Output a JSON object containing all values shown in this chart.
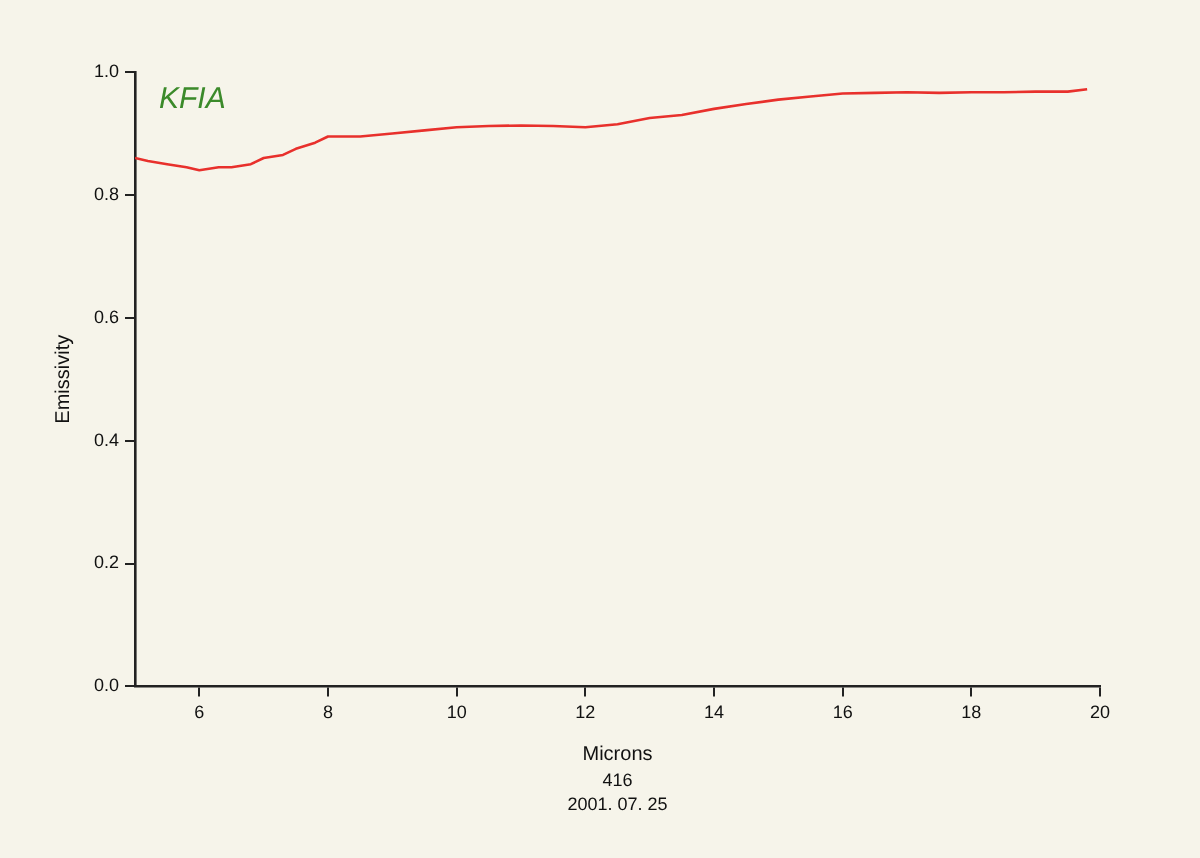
{
  "chart_data": {
    "type": "line",
    "xlabel": "Microns",
    "ylabel": "Emissivity",
    "annotations": [
      "KFIA",
      "416",
      "2001. 07. 25"
    ],
    "x": [
      5,
      5.2,
      5.5,
      5.8,
      6,
      6.3,
      6.5,
      6.8,
      7,
      7.3,
      7.5,
      7.8,
      8,
      8.5,
      9,
      9.5,
      10,
      10.5,
      11,
      11.5,
      12,
      12.5,
      13,
      13.5,
      14,
      14.5,
      15,
      15.5,
      16,
      16.5,
      17,
      17.5,
      18,
      18.5,
      19,
      19.5,
      19.8
    ],
    "series": [
      {
        "color": "#e8302c",
        "values": [
          0.86,
          0.855,
          0.85,
          0.845,
          0.84,
          0.845,
          0.845,
          0.85,
          0.86,
          0.865,
          0.875,
          0.885,
          0.895,
          0.895,
          0.9,
          0.905,
          0.91,
          0.912,
          0.913,
          0.912,
          0.91,
          0.915,
          0.925,
          0.93,
          0.94,
          0.948,
          0.955,
          0.96,
          0.965,
          0.966,
          0.967,
          0.966,
          0.967,
          0.967,
          0.968,
          0.968,
          0.972
        ]
      }
    ],
    "xlim": [
      5,
      20
    ],
    "xticks": [
      6,
      8,
      10,
      12,
      14,
      16,
      18,
      20
    ],
    "ylim": [
      0,
      1
    ],
    "yticks": [
      {
        "value": 0,
        "label": "0.0"
      },
      {
        "value": 0.2,
        "label": "0.2"
      },
      {
        "value": 0.4,
        "label": "0.4"
      },
      {
        "value": 0.6,
        "label": "0.6"
      },
      {
        "value": 0.8,
        "label": "0.8"
      },
      {
        "value": 1,
        "label": "1.0"
      }
    ],
    "grid": false,
    "legend": false,
    "marker": "none",
    "line_style": "solid"
  }
}
